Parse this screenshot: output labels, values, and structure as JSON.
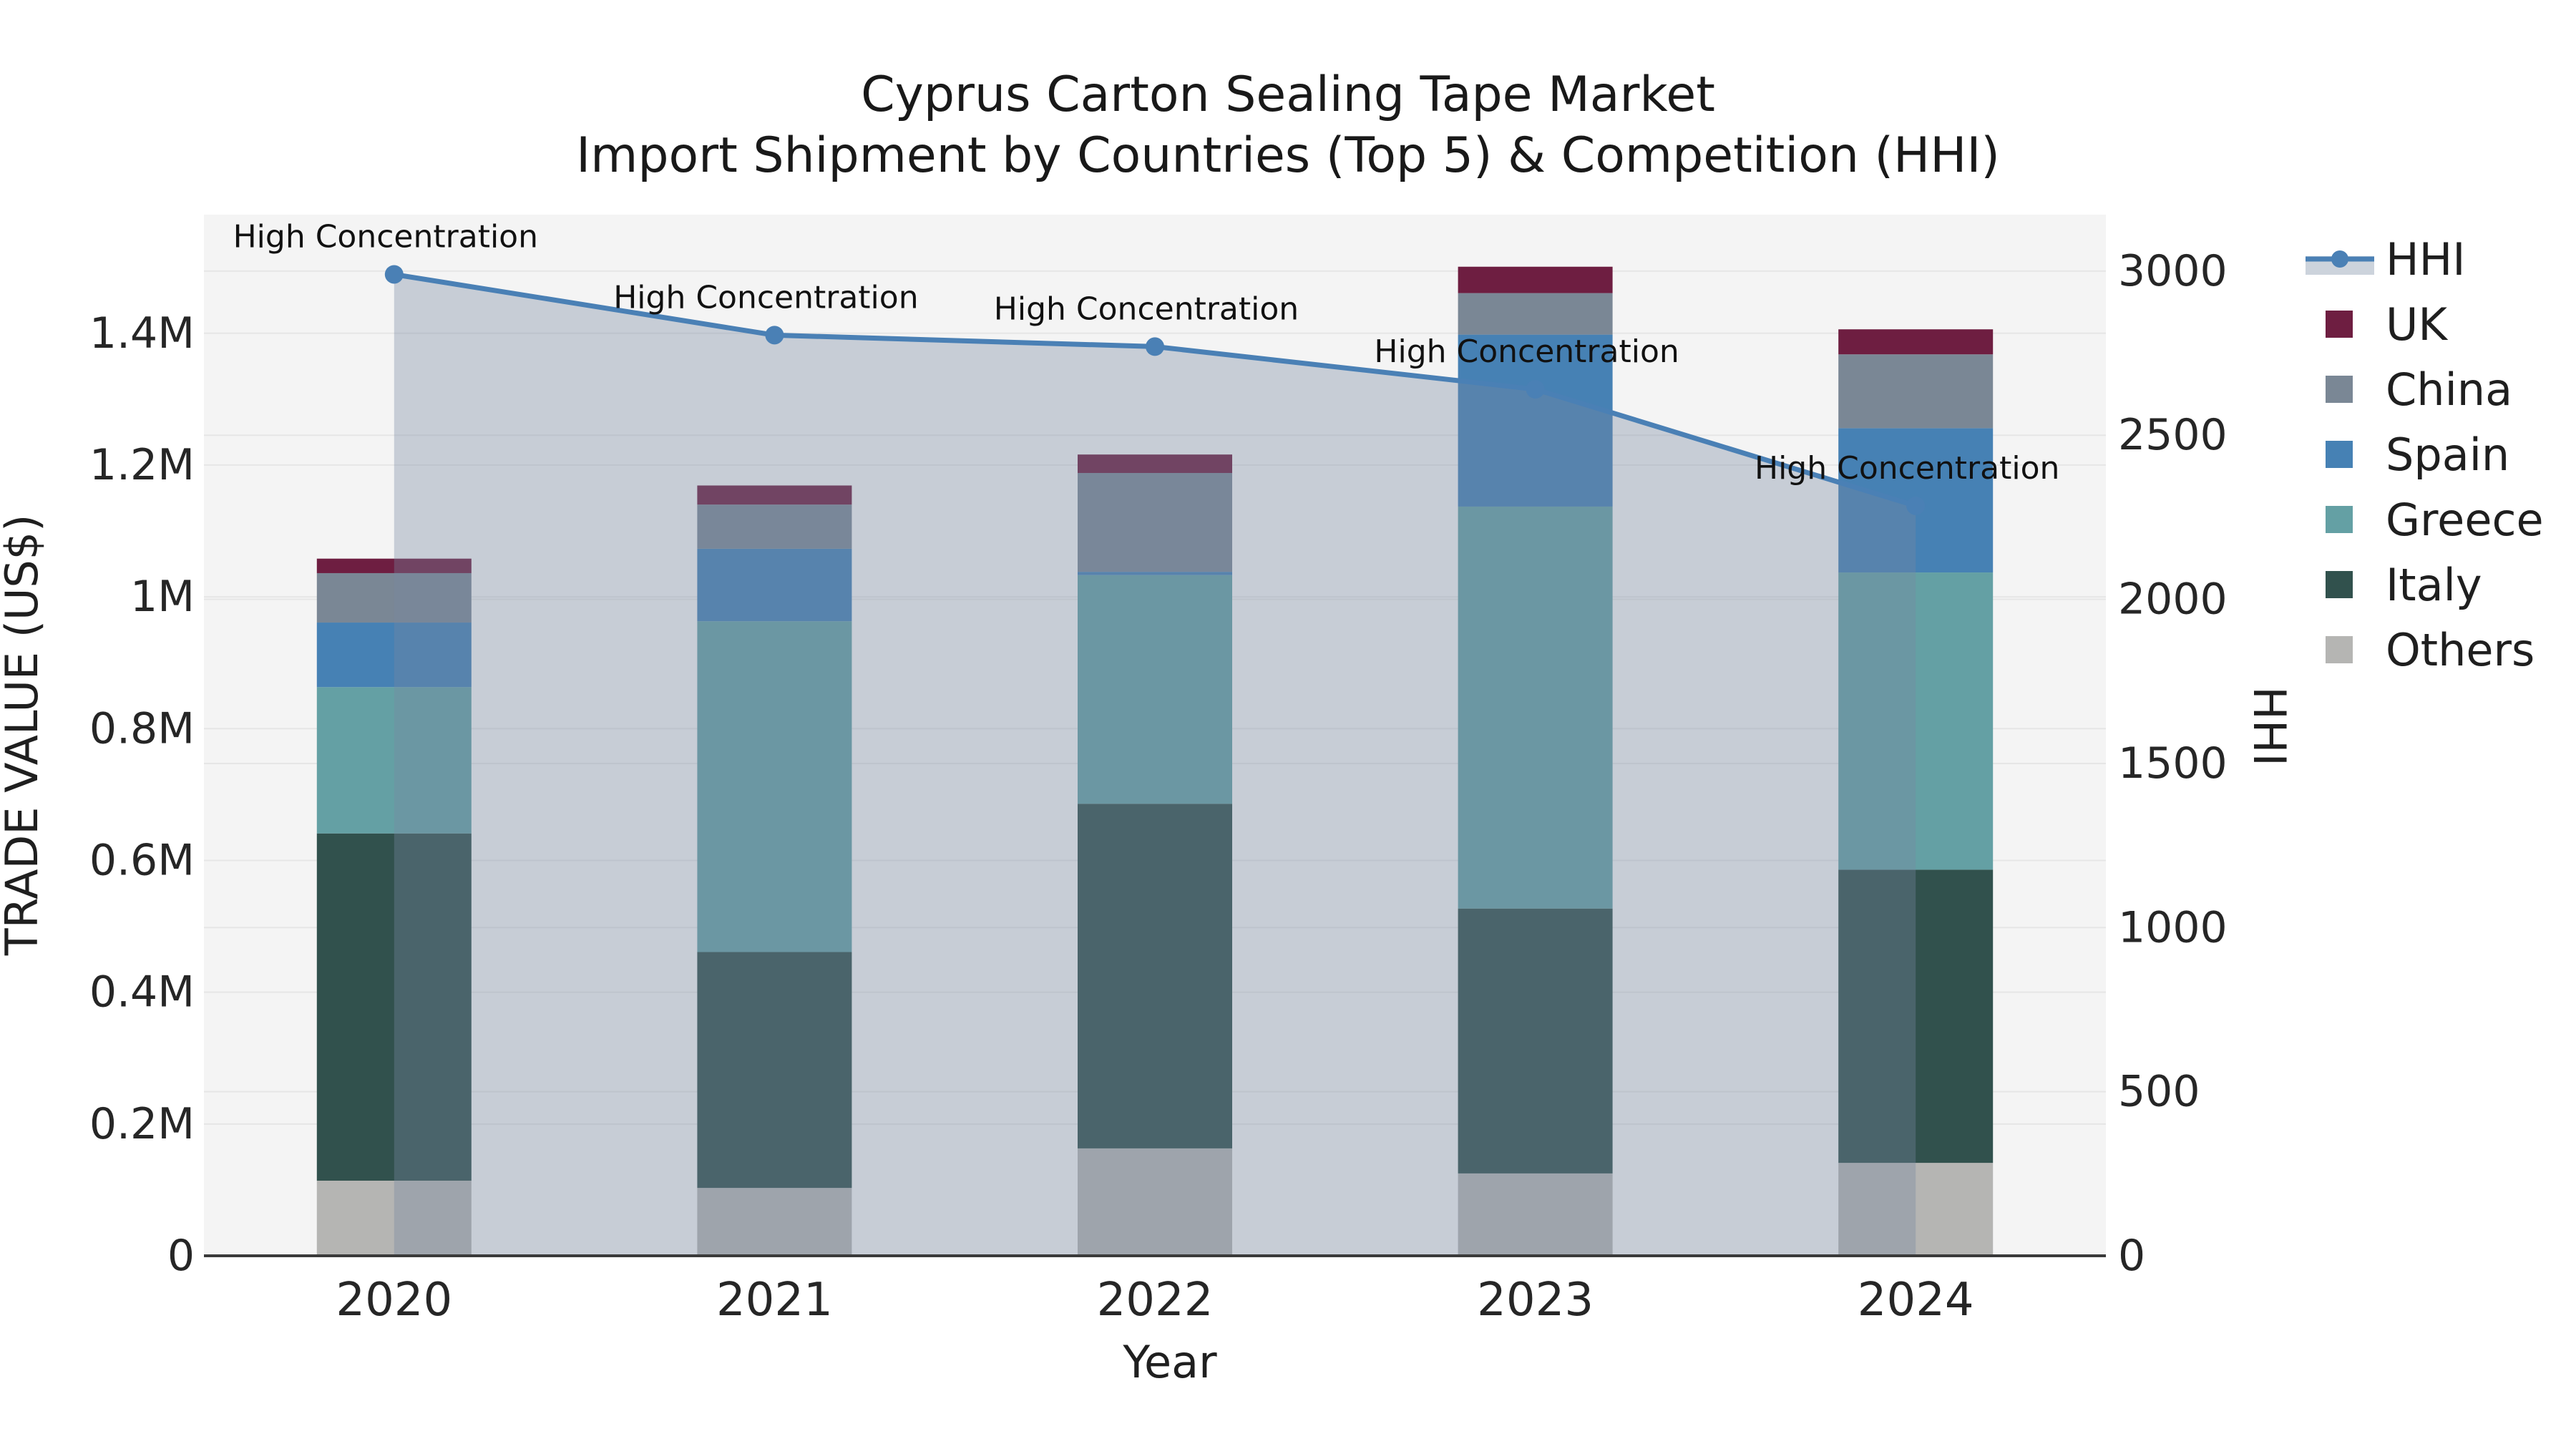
{
  "title": "Cyprus Carton Sealing Tape Market",
  "subtitle": "Import Shipment by Countries (Top 5) & Competition (HHI)",
  "axes": {
    "x_label": "Year",
    "y_left_label": "TRADE VALUE (US$)",
    "y_right_label": "HHI",
    "y_left_ticks": [
      {
        "value": 0.0,
        "label": "0"
      },
      {
        "value": 0.2,
        "label": "0.2M"
      },
      {
        "value": 0.4,
        "label": "0.4M"
      },
      {
        "value": 0.6,
        "label": "0.6M"
      },
      {
        "value": 0.8,
        "label": "0.8M"
      },
      {
        "value": 1.0,
        "label": "1M"
      },
      {
        "value": 1.2,
        "label": "1.2M"
      },
      {
        "value": 1.4,
        "label": "1.4M"
      }
    ],
    "y_right_ticks": [
      {
        "value": 0,
        "label": "0"
      },
      {
        "value": 500,
        "label": "500"
      },
      {
        "value": 1000,
        "label": "1000"
      },
      {
        "value": 1500,
        "label": "1500"
      },
      {
        "value": 2000,
        "label": "2000"
      },
      {
        "value": 2500,
        "label": "2500"
      },
      {
        "value": 3000,
        "label": "3000"
      }
    ]
  },
  "chart_data": {
    "type": "combo-stacked-bar-line",
    "title": "Cyprus Carton Sealing Tape Market\nImport Shipment by Countries (Top 5) & Competition (HHI)",
    "xlabel": "Year",
    "ylabel_left": "TRADE VALUE (US$)",
    "ylabel_right": "HHI",
    "categories": [
      "2020",
      "2021",
      "2022",
      "2023",
      "2024"
    ],
    "bar_value_unit": "US$ millions",
    "series": [
      {
        "name": "UK",
        "color": "#6e1e41",
        "values": [
          0.022,
          0.029,
          0.028,
          0.04,
          0.038
        ]
      },
      {
        "name": "China",
        "color": "#7a8795",
        "values": [
          0.075,
          0.067,
          0.15,
          0.063,
          0.112
        ]
      },
      {
        "name": "Spain",
        "color": "#4681b4",
        "values": [
          0.098,
          0.11,
          0.005,
          0.261,
          0.219
        ]
      },
      {
        "name": "Greece",
        "color": "#64a0a4",
        "values": [
          0.222,
          0.502,
          0.347,
          0.61,
          0.451
        ]
      },
      {
        "name": "Italy",
        "color": "#31514d",
        "values": [
          0.527,
          0.358,
          0.523,
          0.402,
          0.445
        ]
      },
      {
        "name": "Others",
        "color": "#b5b5b3",
        "values": [
          0.114,
          0.103,
          0.163,
          0.125,
          0.141
        ]
      }
    ],
    "stack_order_bottom_to_top": [
      "Others",
      "Italy",
      "Greece",
      "Spain",
      "China",
      "UK"
    ],
    "line_series": {
      "name": "HHI",
      "axis": "right",
      "color": "#4a80b5",
      "area_fill": "rgba(119,136,160,0.36)",
      "values": [
        2990,
        2805,
        2770,
        2640,
        2285
      ]
    },
    "annotations": [
      {
        "x": "2020",
        "text": "High Concentration"
      },
      {
        "x": "2021",
        "text": "High Concentration"
      },
      {
        "x": "2022",
        "text": "High Concentration"
      },
      {
        "x": "2023",
        "text": "High Concentration"
      },
      {
        "x": "2024",
        "text": "High Concentration"
      },
      {
        "x": "2020",
        "text": "High Concentration"
      }
    ],
    "ylim_left": [
      0,
      1.58
    ],
    "ylim_right": [
      0,
      3172
    ],
    "grid": true,
    "legend_position": "right",
    "legend_entries": [
      "HHI",
      "UK",
      "China",
      "Spain",
      "Greece",
      "Italy",
      "Others"
    ]
  },
  "style_colors": {
    "plot_background": "#f4f4f4",
    "gridline": "#e6e6e6",
    "axis_line": "#3a3a3a",
    "hhi_legend_band": "#ccd3dc"
  }
}
